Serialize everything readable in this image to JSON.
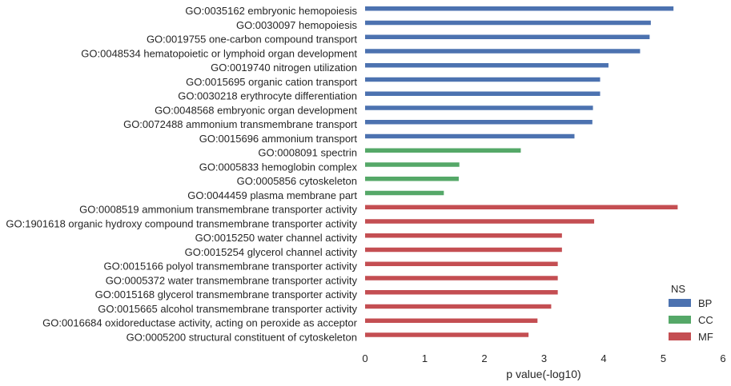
{
  "chart_data": {
    "type": "bar",
    "orientation": "horizontal",
    "xlabel": "p value(-log10)",
    "xlim": [
      0,
      6
    ],
    "xticks": [
      0,
      1,
      2,
      3,
      4,
      5,
      6
    ],
    "grid": false,
    "legend": {
      "title": "NS",
      "placement": "bottom-right",
      "entries": [
        {
          "name": "BP",
          "color": "#4c72b0"
        },
        {
          "name": "CC",
          "color": "#55a868"
        },
        {
          "name": "MF",
          "color": "#c44e52"
        }
      ]
    },
    "categories": [
      "GO:0035162 embryonic hemopoiesis",
      "GO:0030097 hemopoiesis",
      "GO:0019755 one-carbon compound transport",
      "GO:0048534 hematopoietic or lymphoid organ development",
      "GO:0019740 nitrogen utilization",
      "GO:0015695 organic cation transport",
      "GO:0030218 erythrocyte differentiation",
      "GO:0048568 embryonic organ development",
      "GO:0072488 ammonium transmembrane transport",
      "GO:0015696 ammonium transport",
      "GO:0008091 spectrin",
      "GO:0005833 hemoglobin complex",
      "GO:0005856 cytoskeleton",
      "GO:0044459 plasma membrane part",
      "GO:0008519 ammonium transmembrane transporter activity",
      "GO:1901618 organic hydroxy compound transmembrane transporter activity",
      "GO:0015250 water channel activity",
      "GO:0015254 glycerol channel activity",
      "GO:0015166 polyol transmembrane transporter activity",
      "GO:0005372 water transmembrane transporter activity",
      "GO:0015168 glycerol transmembrane transporter activity",
      "GO:0015665 alcohol transmembrane transporter activity",
      "GO:0016684 oxidoreductase activity, acting on peroxide as acceptor",
      "GO:0005200 structural constituent of cytoskeleton"
    ],
    "values": [
      5.17,
      4.79,
      4.77,
      4.61,
      4.08,
      3.94,
      3.94,
      3.82,
      3.81,
      3.51,
      2.61,
      1.58,
      1.57,
      1.32,
      5.24,
      3.84,
      3.3,
      3.3,
      3.23,
      3.23,
      3.23,
      3.12,
      2.89,
      2.74
    ],
    "groups": [
      "BP",
      "BP",
      "BP",
      "BP",
      "BP",
      "BP",
      "BP",
      "BP",
      "BP",
      "BP",
      "CC",
      "CC",
      "CC",
      "CC",
      "MF",
      "MF",
      "MF",
      "MF",
      "MF",
      "MF",
      "MF",
      "MF",
      "MF",
      "MF"
    ]
  }
}
